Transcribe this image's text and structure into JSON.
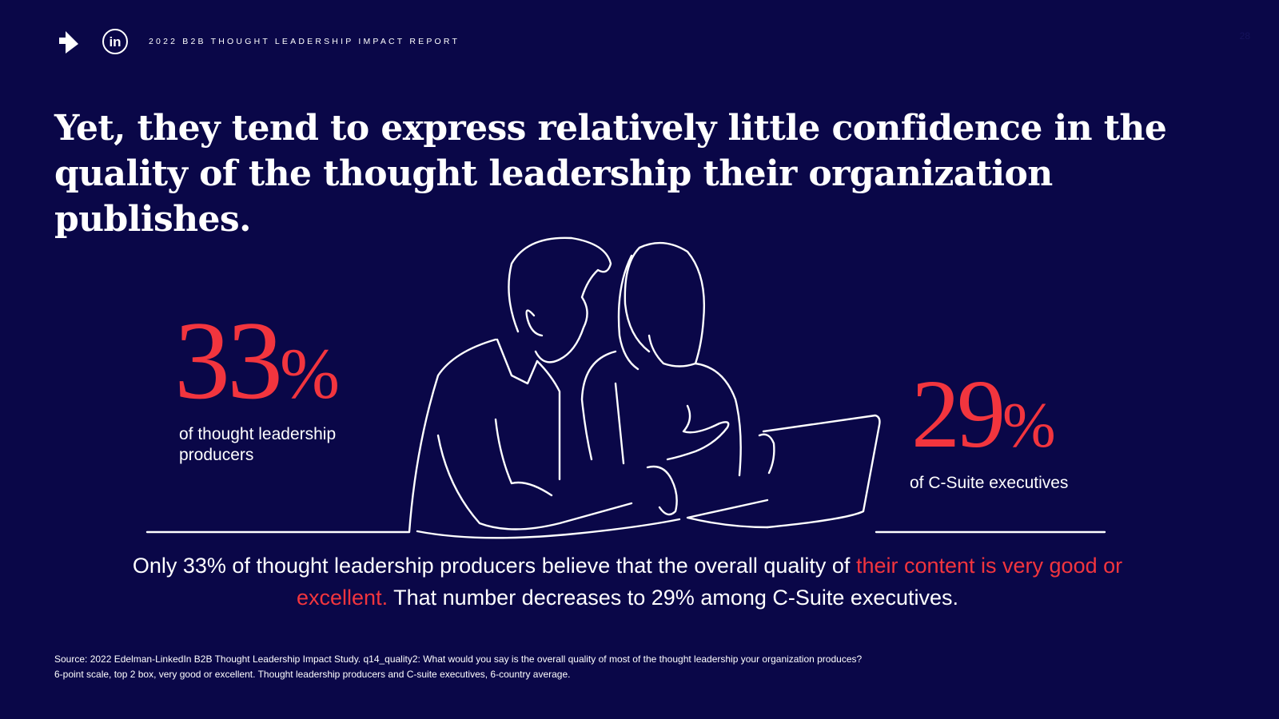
{
  "header": {
    "brand_icon": "arrow-logo-icon",
    "linkedin_icon": "linkedin-logo-icon",
    "linkedin_text": "in",
    "report_title": "2022 B2B THOUGHT LEADERSHIP IMPACT REPORT",
    "page_number": "28"
  },
  "headline": "Yet, they tend to express relatively little confidence in the quality of the thought leadership their organization publishes.",
  "stats": {
    "producers": {
      "number": "33",
      "unit": "%",
      "caption": "of thought leadership producers"
    },
    "csuite": {
      "number": "29",
      "unit": "%",
      "caption": "of C-Suite executives"
    }
  },
  "summary": {
    "part1": "Only 33% of thought leadership producers believe that the overall quality of ",
    "highlight": "their content is very good or excellent.",
    "part2": " That number decreases to 29% among C-Suite executives."
  },
  "source": {
    "line1": "Source: 2022 Edelman-LinkedIn B2B Thought Leadership Impact Study. q14_quality2: What would you say is the overall quality of most of the thought leadership your organization produces?",
    "line2": "6-point scale, top 2 box, very good or excellent. Thought leadership producers and C-suite executives, 6-country average."
  },
  "colors": {
    "background": "#0a0748",
    "accent": "#f2353e",
    "text": "#ffffff"
  },
  "illustration_icon": "two-people-laptop-line-art-icon"
}
